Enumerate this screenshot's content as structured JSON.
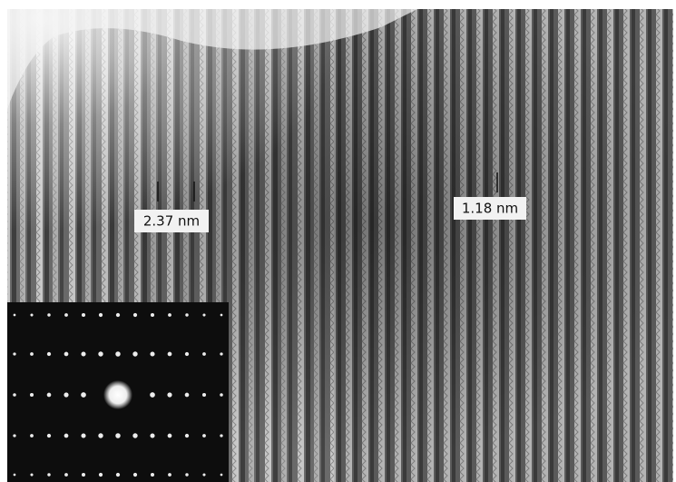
{
  "labels": {
    "left": "2.37 nm",
    "right": "1.18 nm"
  }
}
